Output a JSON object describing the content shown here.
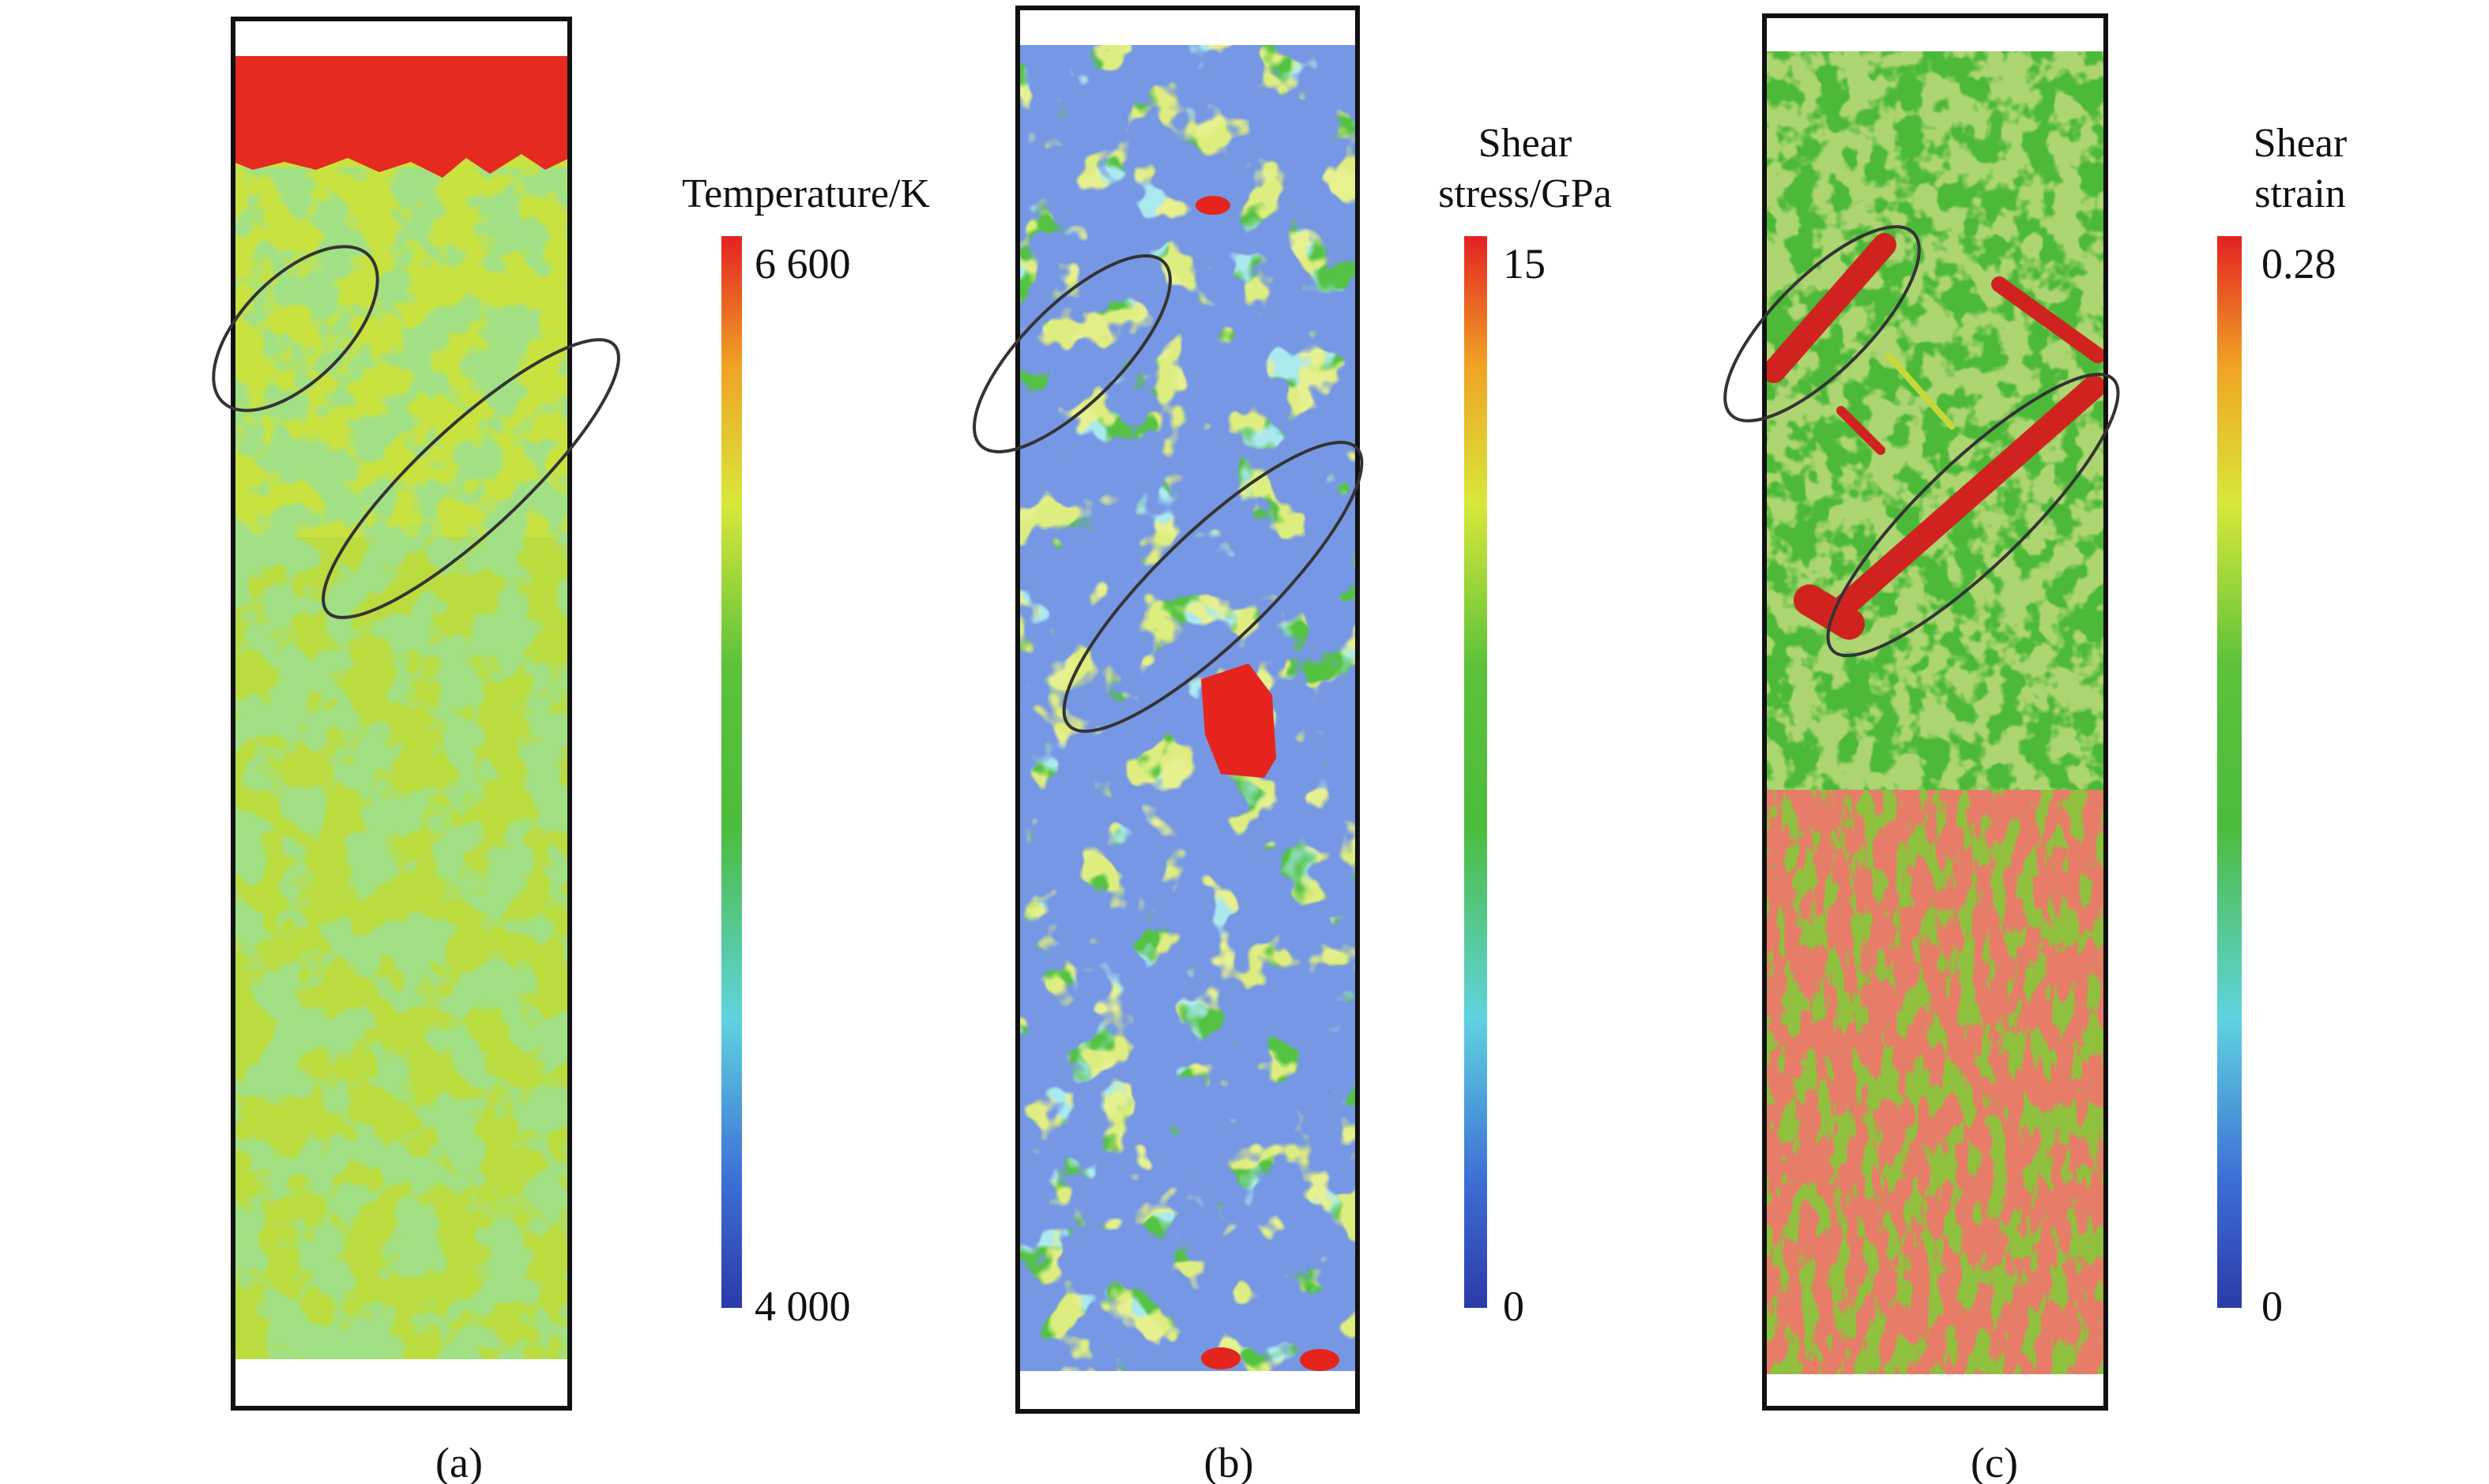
{
  "colormap": [
    "#2b3aa8",
    "#3d6fd6",
    "#5fd3df",
    "#3cb84a",
    "#4cbc3c",
    "#d8e83a",
    "#f0a224",
    "#e32222"
  ],
  "panels": [
    {
      "id": "a",
      "caption": "(a)",
      "colorbar": {
        "title_lines": [
          "Temperature/K"
        ],
        "max": "6 600",
        "min": "4 000"
      },
      "field_colors": {
        "base": "#c9e23f",
        "patch": "#5cbf3c",
        "hot": "#e52a20"
      }
    },
    {
      "id": "b",
      "caption": "(b)",
      "colorbar": {
        "title_lines": [
          "Shear",
          "stress/GPa"
        ],
        "max": "15",
        "min": "0"
      },
      "field_colors": {
        "base": "#54c242",
        "patch": "#66cfd8",
        "low": "#2f4fc4",
        "high": "#d8e23e",
        "hot": "#e5251d"
      }
    },
    {
      "id": "c",
      "caption": "(c)",
      "colorbar": {
        "title_lines": [
          "Shear",
          "strain"
        ],
        "max": "0.28",
        "min": "0"
      },
      "field_colors": {
        "base": "#4cb938",
        "patch": "#92c240",
        "hot": "#cf2a22"
      }
    }
  ]
}
